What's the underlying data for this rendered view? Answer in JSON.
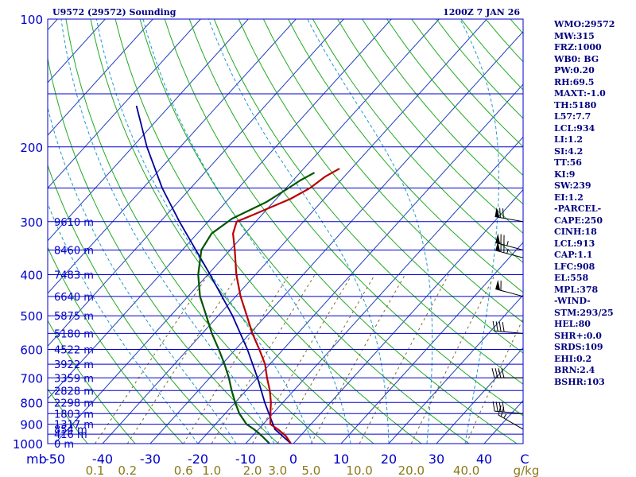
{
  "header": {
    "station": "U9572 (29572) Sounding",
    "time": "1200Z  7 JAN 26"
  },
  "sidebar": {
    "items": [
      "WMO:29572",
      "MW:315",
      "FRZ:1000",
      "WB0: BG",
      "PW:0.20",
      "RH:69.5",
      "MAXT:-1.0",
      "TH:5180",
      "L57:7.7",
      "LCL:934",
      "LI:1.2",
      "SI:4.2",
      "TT:56",
      "KI:9",
      "SW:239",
      "EI:1.2",
      "-PARCEL-",
      "CAPE:250",
      "CINH:18",
      "LCL:913",
      "CAP:1.1",
      "LFC:908",
      "EL:558",
      "MPL:378",
      "-WIND-",
      "STM:293/25",
      "HEL:80",
      "SHR+:0.0",
      "SRDS:109",
      "EHI:0.2",
      "BRN:2.4",
      "BSHR:103"
    ]
  },
  "colors": {
    "isobar": "#0000cc",
    "temperature": "#bb0000",
    "dewpoint": "#005500",
    "parcel": "#000099",
    "isotherm": "#1f3fbf",
    "dry_adiabat": "#22aa22",
    "moist_adiabat": "#2299cc",
    "mixing_ratio": "#7a6a2a",
    "axis_label": "#0000cc",
    "mixing_label": "#8b7a1a",
    "sidebar_text": "#000080",
    "wind_barb": "#000000"
  },
  "chart_data": {
    "type": "skew-t",
    "title": "U9572 (29572) Sounding",
    "ylabel": "mb",
    "xlabel": "C",
    "mixing_ratio_unit": "g/kg",
    "pressure_range": [
      1000,
      100
    ],
    "temperature_range": [
      -50,
      50
    ],
    "pressure_levels": [
      {
        "p": 100,
        "label": "100"
      },
      {
        "p": 150,
        "label": ""
      },
      {
        "p": 200,
        "label": "200"
      },
      {
        "p": 250,
        "label": ""
      },
      {
        "p": 300,
        "label": "300"
      },
      {
        "p": 350,
        "label": ""
      },
      {
        "p": 400,
        "label": "400"
      },
      {
        "p": 450,
        "label": ""
      },
      {
        "p": 500,
        "label": "500"
      },
      {
        "p": 550,
        "label": ""
      },
      {
        "p": 600,
        "label": "600"
      },
      {
        "p": 650,
        "label": ""
      },
      {
        "p": 700,
        "label": "700"
      },
      {
        "p": 750,
        "label": ""
      },
      {
        "p": 800,
        "label": "800"
      },
      {
        "p": 850,
        "label": ""
      },
      {
        "p": 900,
        "label": "900"
      },
      {
        "p": 950,
        "label": ""
      },
      {
        "p": 1000,
        "label": "1000"
      }
    ],
    "temperature_ticks": [
      {
        "t": -50,
        "label": "-50"
      },
      {
        "t": -40,
        "label": "-40"
      },
      {
        "t": -30,
        "label": "-30"
      },
      {
        "t": -20,
        "label": "-20"
      },
      {
        "t": -10,
        "label": "-10"
      },
      {
        "t": 0,
        "label": "0"
      },
      {
        "t": 10,
        "label": "10"
      },
      {
        "t": 20,
        "label": "20"
      },
      {
        "t": 30,
        "label": "30"
      },
      {
        "t": 40,
        "label": "40"
      }
    ],
    "mixing_ratio_ticks": [
      {
        "w": 0.1,
        "label": "0.1"
      },
      {
        "w": 0.2,
        "label": "0.2"
      },
      {
        "w": 0.6,
        "label": "0.6"
      },
      {
        "w": 1.0,
        "label": "1.0"
      },
      {
        "w": 2.0,
        "label": "2.0"
      },
      {
        "w": 3.0,
        "label": "3.0"
      },
      {
        "w": 5.0,
        "label": "5.0"
      },
      {
        "w": 10.0,
        "label": "10.0"
      },
      {
        "w": 20.0,
        "label": "20.0"
      },
      {
        "w": 40.0,
        "label": "40.0"
      }
    ],
    "height_labels": [
      {
        "p": 1000,
        "label": "0 m"
      },
      {
        "p": 950,
        "label": "416 m"
      },
      {
        "p": 925,
        "label": "854 m"
      },
      {
        "p": 900,
        "label": "1317 m"
      },
      {
        "p": 850,
        "label": "1803 m"
      },
      {
        "p": 800,
        "label": "2298 m"
      },
      {
        "p": 750,
        "label": "2828 m"
      },
      {
        "p": 700,
        "label": "3359 m"
      },
      {
        "p": 650,
        "label": "3922 m"
      },
      {
        "p": 600,
        "label": "4522 m"
      },
      {
        "p": 550,
        "label": "5180 m"
      },
      {
        "p": 500,
        "label": "5875 m"
      },
      {
        "p": 450,
        "label": "6640 m"
      },
      {
        "p": 400,
        "label": "7483 m"
      },
      {
        "p": 350,
        "label": "8460 m"
      },
      {
        "p": 300,
        "label": "9610 m"
      }
    ],
    "temperature_profile": [
      {
        "p": 1000,
        "t": -0.5
      },
      {
        "p": 960,
        "t": -3
      },
      {
        "p": 925,
        "t": -6
      },
      {
        "p": 900,
        "t": -8.5
      },
      {
        "p": 850,
        "t": -10.5
      },
      {
        "p": 800,
        "t": -12.5
      },
      {
        "p": 750,
        "t": -15
      },
      {
        "p": 700,
        "t": -18
      },
      {
        "p": 650,
        "t": -21
      },
      {
        "p": 600,
        "t": -25
      },
      {
        "p": 550,
        "t": -29.5
      },
      {
        "p": 500,
        "t": -34
      },
      {
        "p": 450,
        "t": -39
      },
      {
        "p": 400,
        "t": -44
      },
      {
        "p": 350,
        "t": -49
      },
      {
        "p": 320,
        "t": -52.5
      },
      {
        "p": 300,
        "t": -54
      },
      {
        "p": 290,
        "t": -52
      },
      {
        "p": 265,
        "t": -47
      },
      {
        "p": 250,
        "t": -45
      },
      {
        "p": 235,
        "t": -44
      },
      {
        "p": 225,
        "t": -42.5
      }
    ],
    "dewpoint_profile": [
      {
        "p": 1000,
        "t": -5
      },
      {
        "p": 960,
        "t": -8
      },
      {
        "p": 925,
        "t": -11
      },
      {
        "p": 900,
        "t": -13.5
      },
      {
        "p": 850,
        "t": -17
      },
      {
        "p": 800,
        "t": -20
      },
      {
        "p": 750,
        "t": -23
      },
      {
        "p": 700,
        "t": -26
      },
      {
        "p": 650,
        "t": -29.5
      },
      {
        "p": 600,
        "t": -33.5
      },
      {
        "p": 550,
        "t": -38
      },
      {
        "p": 500,
        "t": -42.5
      },
      {
        "p": 450,
        "t": -47.5
      },
      {
        "p": 400,
        "t": -52
      },
      {
        "p": 350,
        "t": -56
      },
      {
        "p": 320,
        "t": -57
      },
      {
        "p": 295,
        "t": -55.5
      },
      {
        "p": 270,
        "t": -51.5
      },
      {
        "p": 250,
        "t": -49.5
      },
      {
        "p": 240,
        "t": -48.5
      },
      {
        "p": 230,
        "t": -47
      }
    ],
    "parcel_profile": [
      {
        "p": 1000,
        "t": -0.5
      },
      {
        "p": 925,
        "t": -6.6
      },
      {
        "p": 850,
        "t": -10.8
      },
      {
        "p": 800,
        "t": -13.8
      },
      {
        "p": 700,
        "t": -20
      },
      {
        "p": 600,
        "t": -27.5
      },
      {
        "p": 500,
        "t": -37
      },
      {
        "p": 400,
        "t": -49.5
      },
      {
        "p": 300,
        "t": -66
      },
      {
        "p": 250,
        "t": -76
      },
      {
        "p": 200,
        "t": -87
      },
      {
        "p": 160,
        "t": -97
      }
    ],
    "wind_barbs": [
      {
        "p": 300,
        "dir": 280,
        "spd": 70
      },
      {
        "p": 350,
        "dir": 285,
        "spd": 75
      },
      {
        "p": 365,
        "dir": 285,
        "spd": 75
      },
      {
        "p": 450,
        "dir": 285,
        "spd": 60
      },
      {
        "p": 550,
        "dir": 275,
        "spd": 40
      },
      {
        "p": 700,
        "dir": 270,
        "spd": 40
      },
      {
        "p": 850,
        "dir": 275,
        "spd": 40
      },
      {
        "p": 925,
        "dir": 300,
        "spd": 25
      }
    ]
  }
}
